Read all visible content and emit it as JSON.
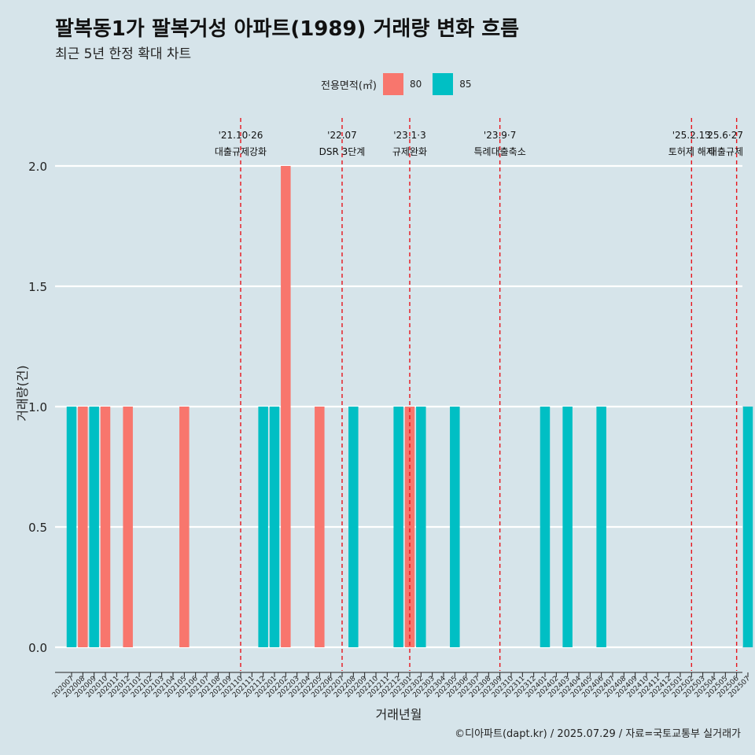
{
  "title": "팔복동1가 팔복거성 아파트(1989) 거래량 변화 흐름",
  "subtitle": "최근 5년 한정 확대 차트",
  "caption": "©디아파트(dapt.kr) / 2025.07.29 / 자료=국토교통부 실거래가",
  "legend": {
    "title": "전용면적(㎡)",
    "items": [
      {
        "label": "80",
        "color": "#f8766d"
      },
      {
        "label": "85",
        "color": "#00bfc4"
      }
    ]
  },
  "chart_data": {
    "type": "bar",
    "xlabel": "거래년월",
    "ylabel": "거래량(건)",
    "ylim": [
      0,
      2
    ],
    "yticks": [
      "0.0",
      "0.5",
      "1.0",
      "1.5",
      "2.0"
    ],
    "categories": [
      "202007",
      "202008",
      "202009",
      "202010",
      "202011",
      "202012",
      "202101",
      "202102",
      "202103",
      "202104",
      "202105",
      "202106",
      "202107",
      "202108",
      "202109",
      "202110",
      "202111",
      "202112",
      "202201",
      "202202",
      "202203",
      "202204",
      "202205",
      "202206",
      "202207",
      "202208",
      "202209",
      "202210",
      "202211",
      "202212",
      "202301",
      "202302",
      "202303",
      "202304",
      "202305",
      "202306",
      "202307",
      "202308",
      "202309",
      "202310",
      "202311",
      "202312",
      "202401",
      "202402",
      "202403",
      "202404",
      "202405",
      "202406",
      "202407",
      "202408",
      "202409",
      "202410",
      "202411",
      "202412",
      "202501",
      "202502",
      "202503",
      "202504",
      "202505",
      "202506",
      "202507"
    ],
    "series": [
      {
        "name": "80",
        "color": "#f8766d",
        "values": [
          0,
          1,
          0,
          1,
          0,
          1,
          0,
          0,
          0,
          0,
          1,
          0,
          0,
          0,
          0,
          0,
          0,
          0,
          0,
          2,
          0,
          0,
          1,
          0,
          0,
          0,
          0,
          0,
          0,
          0,
          1,
          0,
          0,
          0,
          0,
          0,
          0,
          0,
          0,
          0,
          0,
          0,
          0,
          0,
          0,
          0,
          0,
          0,
          0,
          0,
          0,
          0,
          0,
          0,
          0,
          0,
          0,
          0,
          0,
          0,
          0
        ]
      },
      {
        "name": "85",
        "color": "#00bfc4",
        "values": [
          1,
          0,
          1,
          0,
          0,
          0,
          0,
          0,
          0,
          0,
          0,
          0,
          0,
          0,
          0,
          0,
          0,
          1,
          1,
          0,
          0,
          0,
          0,
          0,
          0,
          1,
          0,
          0,
          0,
          1,
          0,
          1,
          0,
          0,
          1,
          0,
          0,
          0,
          0,
          0,
          0,
          0,
          1,
          0,
          1,
          0,
          0,
          1,
          0,
          0,
          0,
          0,
          0,
          0,
          0,
          0,
          0,
          0,
          0,
          0,
          1
        ]
      }
    ],
    "annotations": [
      {
        "x": "202110",
        "date": "'21.10·26",
        "label": "대출규제강화"
      },
      {
        "x": "202207",
        "date": "'22.07",
        "label": "DSR 3단계"
      },
      {
        "x": "202301",
        "date": "'23.1·3",
        "label": "규제완화"
      },
      {
        "x": "202309",
        "date": "'23.9·7",
        "label": "특례대출축소"
      },
      {
        "x": "202502",
        "date": "'25.2.13",
        "label": "토허제 해제"
      },
      {
        "x": "202506",
        "date": "'25.6·27",
        "label": "대출규제"
      }
    ]
  }
}
